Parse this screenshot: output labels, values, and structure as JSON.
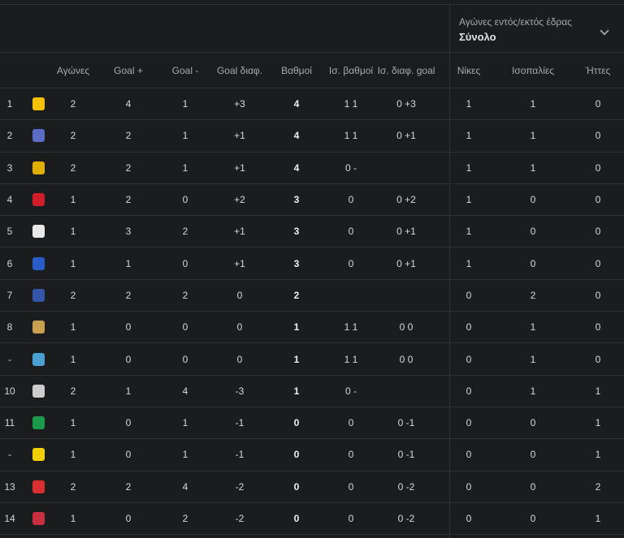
{
  "filter": {
    "label": "Αγώνες εντός/εκτός έδρας",
    "value": "Σύνολο",
    "icon": "chevron-down-icon"
  },
  "columns": [
    "Αγώνες",
    "Goal +",
    "Goal -",
    "Goal διαφ.",
    "Βαθμοί",
    "Ισ. βαθμοί",
    "Ισ. διαφ. goal",
    "Νίκες",
    "Ισοπαλίες",
    "Ήττες"
  ],
  "rows": [
    {
      "rank": "1",
      "logo": "#f2c200",
      "cells": [
        "2",
        "4",
        "1",
        "+3",
        "4",
        "1 1",
        "0 +3",
        "1",
        "1",
        "0"
      ]
    },
    {
      "rank": "2",
      "logo": "#5a6cc4",
      "cells": [
        "2",
        "2",
        "1",
        "+1",
        "4",
        "1 1",
        "0 +1",
        "1",
        "1",
        "0"
      ]
    },
    {
      "rank": "3",
      "logo": "#e0b000",
      "cells": [
        "2",
        "2",
        "1",
        "+1",
        "4",
        "0 -",
        "",
        "1",
        "1",
        "0"
      ]
    },
    {
      "rank": "4",
      "logo": "#d21e2b",
      "cells": [
        "1",
        "2",
        "0",
        "+2",
        "3",
        "0",
        "0 +2",
        "1",
        "0",
        "0"
      ]
    },
    {
      "rank": "5",
      "logo": "#e8e8e8",
      "cells": [
        "1",
        "3",
        "2",
        "+1",
        "3",
        "0",
        "0 +1",
        "1",
        "0",
        "0"
      ]
    },
    {
      "rank": "6",
      "logo": "#2a5cc8",
      "cells": [
        "1",
        "1",
        "0",
        "+1",
        "3",
        "0",
        "0 +1",
        "1",
        "0",
        "0"
      ]
    },
    {
      "rank": "7",
      "logo": "#3355aa",
      "cells": [
        "2",
        "2",
        "2",
        "0",
        "2",
        "",
        "",
        "0",
        "2",
        "0"
      ]
    },
    {
      "rank": "8",
      "logo": "#c8a050",
      "cells": [
        "1",
        "0",
        "0",
        "0",
        "1",
        "1 1",
        "0 0",
        "0",
        "1",
        "0"
      ]
    },
    {
      "rank": "-",
      "logo": "#4aa0d0",
      "cells": [
        "1",
        "0",
        "0",
        "0",
        "1",
        "1 1",
        "0 0",
        "0",
        "1",
        "0"
      ]
    },
    {
      "rank": "10",
      "logo": "#cccccc",
      "cells": [
        "2",
        "1",
        "4",
        "-3",
        "1",
        "0 -",
        "",
        "0",
        "1",
        "1"
      ]
    },
    {
      "rank": "11",
      "logo": "#1a9a4a",
      "cells": [
        "1",
        "0",
        "1",
        "-1",
        "0",
        "0",
        "0 -1",
        "0",
        "0",
        "1"
      ]
    },
    {
      "rank": "-",
      "logo": "#f0d000",
      "cells": [
        "1",
        "0",
        "1",
        "-1",
        "0",
        "0",
        "0 -1",
        "0",
        "0",
        "1"
      ]
    },
    {
      "rank": "13",
      "logo": "#d83030",
      "cells": [
        "2",
        "2",
        "4",
        "-2",
        "0",
        "0",
        "0 -2",
        "0",
        "0",
        "2"
      ]
    },
    {
      "rank": "14",
      "logo": "#c83040",
      "cells": [
        "1",
        "0",
        "2",
        "-2",
        "0",
        "0",
        "0 -2",
        "0",
        "0",
        "1"
      ]
    }
  ]
}
